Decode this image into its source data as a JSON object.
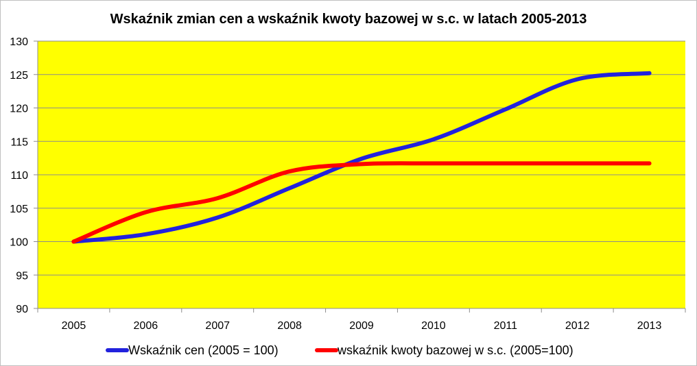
{
  "chart_data": {
    "type": "line",
    "title": "Wskaźnik zmian cen a wskaźnik kwoty bazowej w s.c. w latach 2005-2013",
    "xlabel": "",
    "ylabel": "",
    "categories": [
      "2005",
      "2006",
      "2007",
      "2008",
      "2009",
      "2010",
      "2011",
      "2012",
      "2013"
    ],
    "ylim": [
      90,
      130
    ],
    "yticks": [
      "130",
      "125",
      "120",
      "115",
      "110",
      "105",
      "100",
      "95",
      "90"
    ],
    "grid": true,
    "legend_position": "bottom",
    "plot_background": "#ffff00",
    "series": [
      {
        "name": "Wskaźnik cen (2005 = 100)",
        "color": "#2222dd",
        "values": [
          100,
          101.1,
          103.6,
          108.0,
          112.4,
          115.3,
          119.8,
          124.3,
          125.2
        ]
      },
      {
        "name": "wskaźnik kwoty bazowej w s.c. (2005=100)",
        "color": "#ff0000",
        "values": [
          100,
          104.4,
          106.5,
          110.5,
          111.6,
          111.7,
          111.7,
          111.7,
          111.7
        ]
      }
    ]
  }
}
